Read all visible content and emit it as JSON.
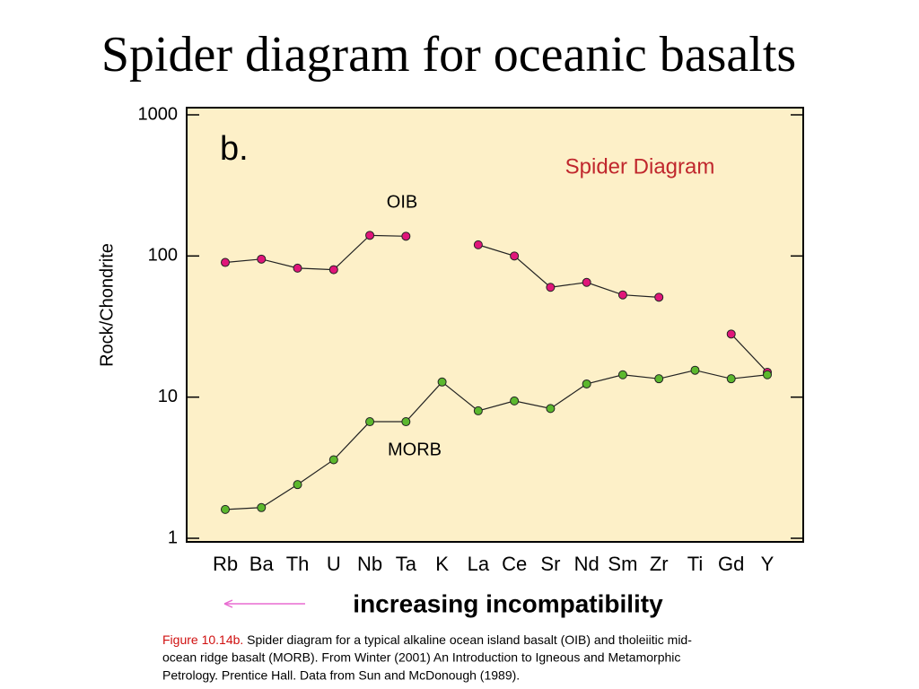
{
  "slide_title": "Spider diagram for oceanic basalts",
  "chart_data": {
    "type": "line",
    "panel_label": "b.",
    "title": "Spider Diagram",
    "y_label": "Rock/Chondrite",
    "categories": [
      "Rb",
      "Ba",
      "Th",
      "U",
      "Nb",
      "Ta",
      "K",
      "La",
      "Ce",
      "Sr",
      "Nd",
      "Sm",
      "Zr",
      "Ti",
      "Gd",
      "Y"
    ],
    "series": [
      {
        "name": "OIB",
        "color": "#e0157a",
        "values": [
          90,
          95,
          82,
          80,
          140,
          138,
          null,
          120,
          100,
          60,
          65,
          53,
          51,
          null,
          28,
          15
        ]
      },
      {
        "name": "MORB",
        "color": "#5cb82e",
        "values": [
          1.6,
          1.65,
          2.4,
          3.6,
          6.7,
          6.7,
          12.8,
          8.0,
          9.4,
          8.3,
          12.4,
          14.4,
          13.5,
          15.5,
          13.5,
          14.4
        ]
      }
    ],
    "ylim": [
      1,
      1000
    ],
    "yticks": [
      1,
      10,
      100,
      1000
    ],
    "log_y": true,
    "background": "#fdf0c8"
  },
  "arrow_label": "increasing incompatibility",
  "caption": {
    "lead": "Figure 10.14b.",
    "lines": [
      " Spider diagram for a typical alkaline ocean island basalt (OIB) and tholeiitic mid-",
      "ocean ridge basalt (MORB). From Winter (2001) An Introduction to Igneous and Metamorphic",
      "Petrology. Prentice Hall. Data from Sun and McDonough (1989)."
    ]
  }
}
